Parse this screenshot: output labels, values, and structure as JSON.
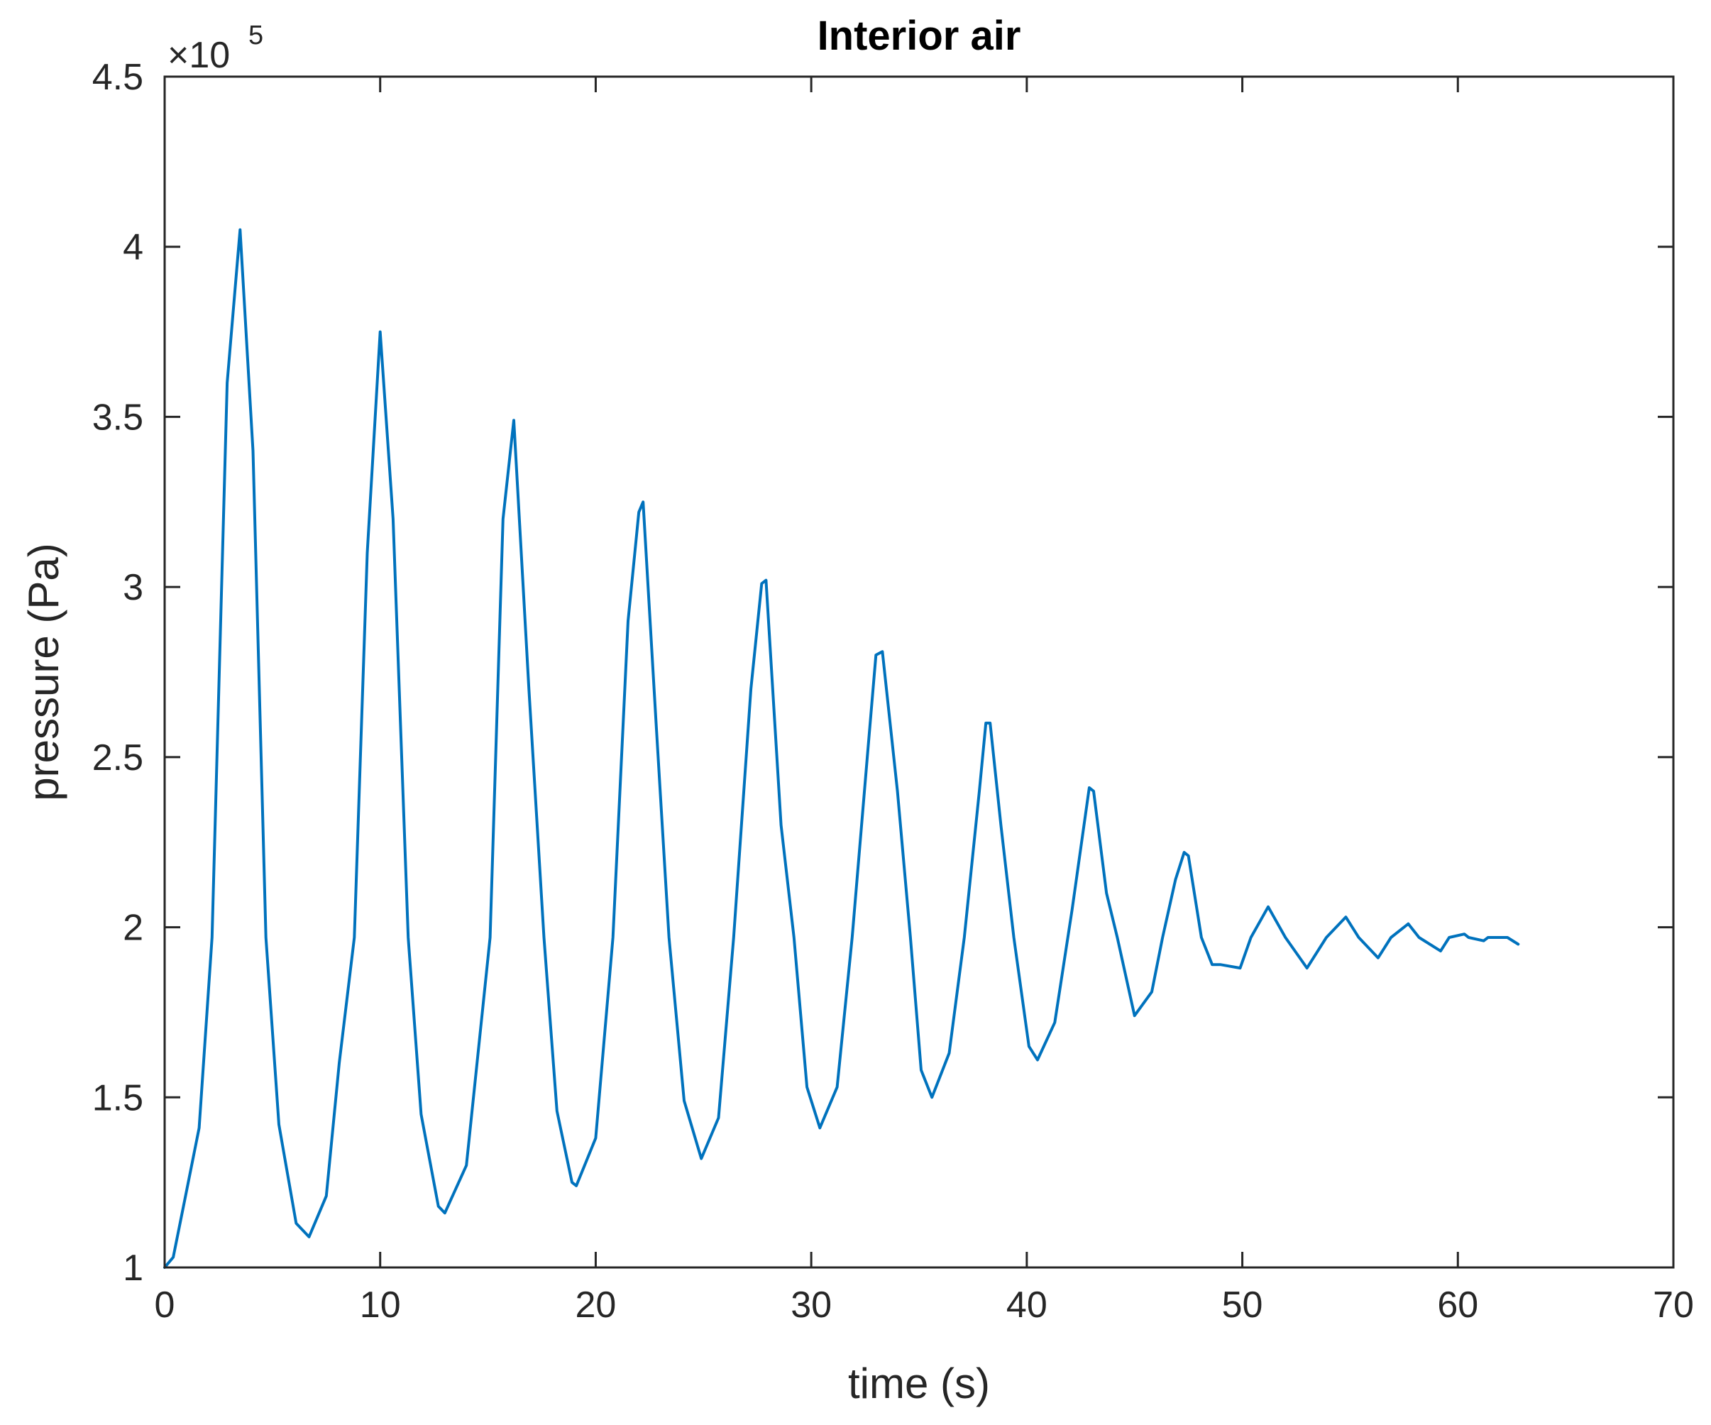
{
  "chart_data": {
    "type": "line",
    "title": "Interior air",
    "xlabel": "time (s)",
    "ylabel": "pressure (Pa)",
    "y_exponent_label": {
      "base": "×10",
      "exponent": "5"
    },
    "xlim": [
      0,
      70
    ],
    "ylim": [
      1,
      4.5
    ],
    "y_scale_factor": 100000,
    "x_ticks": [
      "0",
      "10",
      "20",
      "30",
      "40",
      "50",
      "60",
      "70"
    ],
    "y_ticks": [
      "1",
      "1.5",
      "2",
      "2.5",
      "3",
      "3.5",
      "4",
      "4.5"
    ],
    "grid": false,
    "line_color": "#0072BD",
    "series": [
      {
        "x": [
          0,
          0.4,
          1.0,
          1.6,
          2.2,
          2.9,
          3.5,
          4.1,
          4.7,
          5.3,
          6.1,
          6.7,
          7.5,
          8.1,
          8.8,
          9.4,
          10.0,
          10.6,
          11.3,
          11.9,
          12.7,
          13.0,
          14.0,
          15.1,
          15.7,
          16.2,
          16.9,
          17.6,
          18.2,
          18.9,
          19.1,
          20.0,
          20.8,
          21.5,
          22.0,
          22.2,
          22.8,
          23.4,
          24.1,
          24.9,
          25.7,
          26.4,
          27.2,
          27.7,
          27.9,
          28.6,
          29.2,
          29.8,
          30.4,
          31.2,
          31.9,
          32.6,
          33.0,
          33.3,
          34.0,
          34.6,
          35.1,
          35.6,
          36.4,
          37.1,
          37.8,
          38.1,
          38.3,
          38.8,
          39.4,
          40.1,
          40.5,
          41.3,
          42.1,
          42.9,
          43.1,
          43.7,
          44.2,
          45.0,
          45.8,
          46.3,
          46.9,
          47.3,
          47.5,
          48.1,
          48.6,
          49.0,
          49.9,
          50.4,
          51.2,
          52.0,
          53.0,
          53.9,
          54.8,
          55.4,
          56.3,
          56.9,
          57.7,
          58.2,
          59.2,
          59.6,
          60.3,
          60.5,
          61.2,
          61.4,
          62.3,
          62.8
        ],
        "y": [
          1.0,
          1.03,
          1.22,
          1.41,
          1.97,
          3.6,
          4.05,
          3.4,
          1.97,
          1.42,
          1.13,
          1.09,
          1.21,
          1.6,
          1.97,
          3.1,
          3.75,
          3.2,
          1.97,
          1.45,
          1.18,
          1.16,
          1.3,
          1.97,
          3.2,
          3.49,
          2.7,
          1.97,
          1.46,
          1.25,
          1.24,
          1.38,
          1.97,
          2.9,
          3.22,
          3.25,
          2.6,
          1.97,
          1.49,
          1.32,
          1.44,
          1.97,
          2.7,
          3.01,
          3.02,
          2.3,
          1.97,
          1.53,
          1.41,
          1.53,
          1.97,
          2.5,
          2.8,
          2.81,
          2.4,
          1.97,
          1.58,
          1.5,
          1.63,
          1.97,
          2.4,
          2.6,
          2.6,
          2.3,
          1.97,
          1.65,
          1.61,
          1.72,
          2.05,
          2.41,
          2.4,
          2.1,
          1.97,
          1.74,
          1.81,
          1.97,
          2.14,
          2.22,
          2.21,
          1.97,
          1.89,
          1.89,
          1.88,
          1.97,
          2.06,
          1.97,
          1.88,
          1.97,
          2.03,
          1.97,
          1.91,
          1.97,
          2.01,
          1.97,
          1.93,
          1.97,
          1.98,
          1.97,
          1.96,
          1.97,
          1.97,
          1.95
        ]
      }
    ]
  }
}
